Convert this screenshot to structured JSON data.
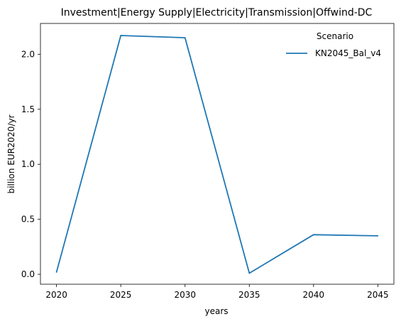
{
  "chart_data": {
    "type": "line",
    "title": "Investment|Energy Supply|Electricity|Transmission|Offwind-DC",
    "xlabel": "years",
    "ylabel": "billion EUR2020/yr",
    "x": [
      2020,
      2025,
      2030,
      2035,
      2040,
      2045
    ],
    "x_ticks": [
      "2020",
      "2025",
      "2030",
      "2035",
      "2040",
      "2045"
    ],
    "y_ticks": [
      "0.0",
      "0.5",
      "1.0",
      "1.5",
      "2.0"
    ],
    "y_tick_values": [
      0.0,
      0.5,
      1.0,
      1.5,
      2.0
    ],
    "xlim": [
      2018.75,
      2046.25
    ],
    "ylim": [
      -0.09,
      2.28
    ],
    "grid": false,
    "legend": {
      "title": "Scenario",
      "placement": "top-right"
    },
    "series": [
      {
        "name": "KN2045_Bal_v4",
        "color": "#1f77b4",
        "values": [
          0.02,
          2.17,
          2.15,
          0.01,
          0.36,
          0.35
        ]
      }
    ]
  }
}
